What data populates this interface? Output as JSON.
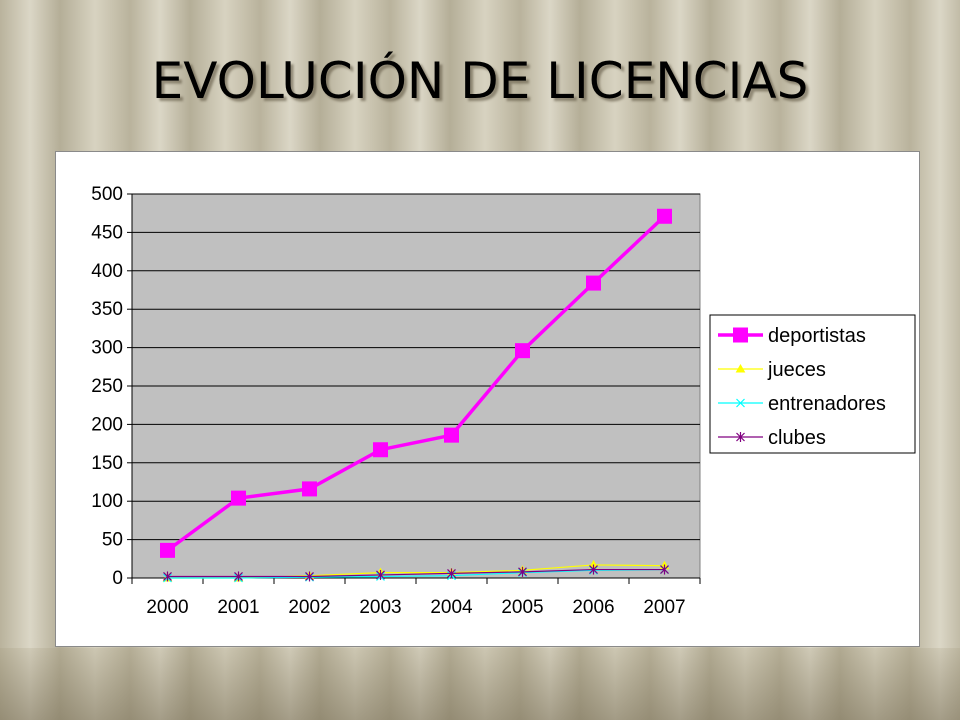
{
  "slide": {
    "title": "EVOLUCIÓN DE LICENCIAS"
  },
  "colors": {
    "plot_background": "#c0c0c0",
    "deportistas": "#ff00ff",
    "jueces": "#ffff00",
    "entrenadores": "#00ffff",
    "clubes": "#800080"
  },
  "chart_data": {
    "type": "line",
    "title": "",
    "xlabel": "",
    "ylabel": "",
    "categories": [
      "2000",
      "2001",
      "2002",
      "2003",
      "2004",
      "2005",
      "2006",
      "2007"
    ],
    "ylim": [
      0,
      500
    ],
    "yticks": [
      "0",
      "50",
      "100",
      "150",
      "200",
      "250",
      "300",
      "350",
      "400",
      "450",
      "500"
    ],
    "grid": true,
    "legend_position": "right",
    "series": [
      {
        "name": "deportistas",
        "marker": "square",
        "color": "#ff00ff",
        "values": [
          36,
          104,
          116,
          167,
          186,
          296,
          384,
          471
        ]
      },
      {
        "name": "jueces",
        "marker": "triangle",
        "color": "#ffff00",
        "values": [
          0,
          0,
          3,
          7,
          7,
          10,
          17,
          16
        ]
      },
      {
        "name": "entrenadores",
        "marker": "x",
        "color": "#00ffff",
        "values": [
          0,
          0,
          1,
          2,
          3,
          7,
          10,
          11
        ]
      },
      {
        "name": "clubes",
        "marker": "star",
        "color": "#800080",
        "values": [
          2,
          2,
          2,
          4,
          6,
          8,
          11,
          11
        ]
      }
    ]
  }
}
